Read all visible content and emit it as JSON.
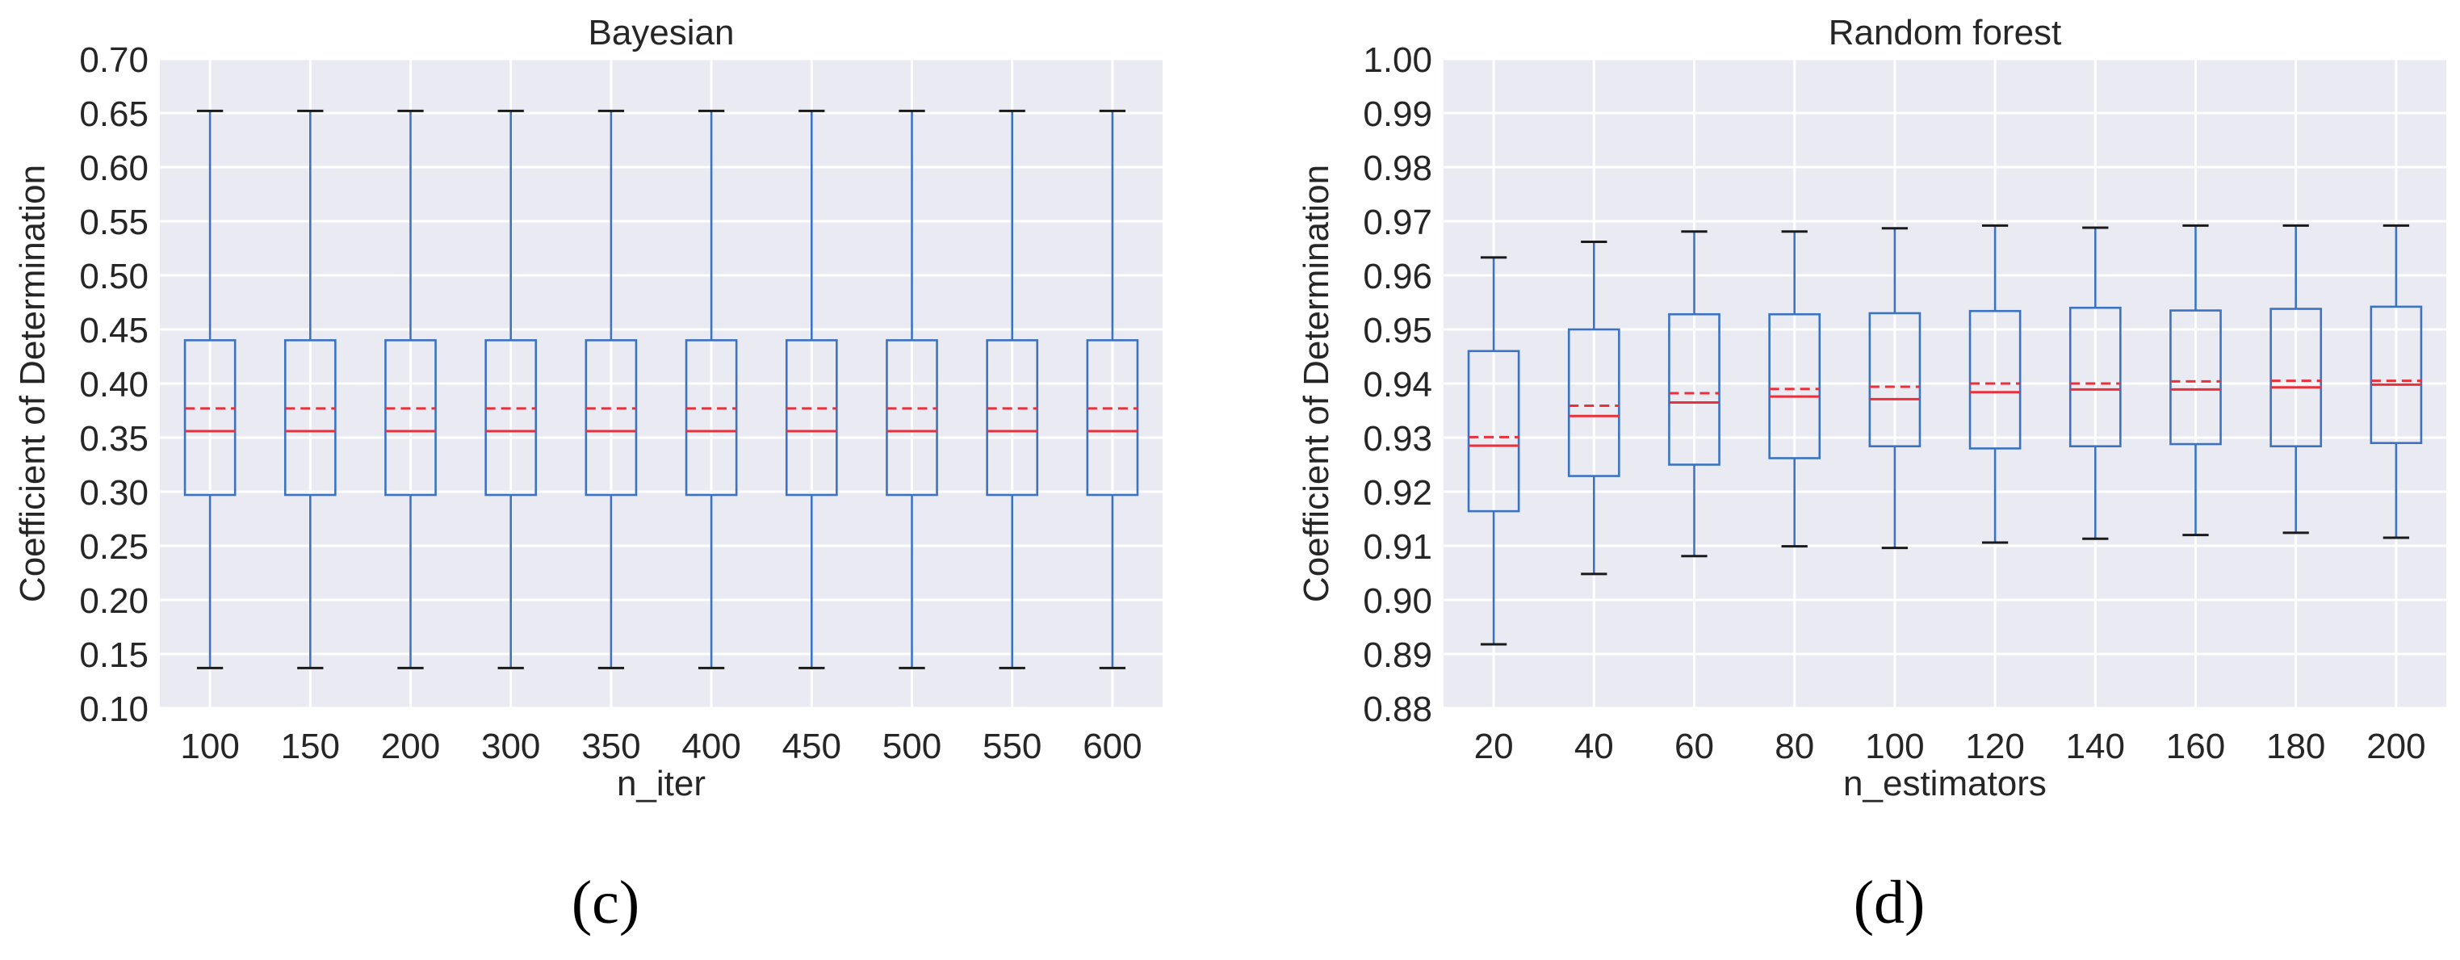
{
  "panel_labels": [
    "(c)",
    "(d)"
  ],
  "chart_data": [
    {
      "type": "boxplot",
      "title": "Bayesian",
      "xlabel": "n_iter",
      "ylabel": "Coefficient of Determination",
      "ylim": [
        0.1,
        0.7
      ],
      "yticks": [
        "0.10",
        "0.15",
        "0.20",
        "0.25",
        "0.30",
        "0.35",
        "0.40",
        "0.45",
        "0.50",
        "0.55",
        "0.60",
        "0.65",
        "0.70"
      ],
      "grid": true,
      "categories": [
        "100",
        "150",
        "200",
        "300",
        "350",
        "400",
        "450",
        "500",
        "550",
        "600"
      ],
      "boxes": [
        {
          "whislo": 0.137,
          "q1": 0.297,
          "med": 0.356,
          "mean": 0.377,
          "q3": 0.44,
          "whishi": 0.652
        },
        {
          "whislo": 0.137,
          "q1": 0.297,
          "med": 0.356,
          "mean": 0.377,
          "q3": 0.44,
          "whishi": 0.652
        },
        {
          "whislo": 0.137,
          "q1": 0.297,
          "med": 0.356,
          "mean": 0.377,
          "q3": 0.44,
          "whishi": 0.652
        },
        {
          "whislo": 0.137,
          "q1": 0.297,
          "med": 0.356,
          "mean": 0.377,
          "q3": 0.44,
          "whishi": 0.652
        },
        {
          "whislo": 0.137,
          "q1": 0.297,
          "med": 0.356,
          "mean": 0.377,
          "q3": 0.44,
          "whishi": 0.652
        },
        {
          "whislo": 0.137,
          "q1": 0.297,
          "med": 0.356,
          "mean": 0.377,
          "q3": 0.44,
          "whishi": 0.652
        },
        {
          "whislo": 0.137,
          "q1": 0.297,
          "med": 0.356,
          "mean": 0.377,
          "q3": 0.44,
          "whishi": 0.652
        },
        {
          "whislo": 0.137,
          "q1": 0.297,
          "med": 0.356,
          "mean": 0.377,
          "q3": 0.44,
          "whishi": 0.652
        },
        {
          "whislo": 0.137,
          "q1": 0.297,
          "med": 0.356,
          "mean": 0.377,
          "q3": 0.44,
          "whishi": 0.652
        },
        {
          "whislo": 0.137,
          "q1": 0.297,
          "med": 0.356,
          "mean": 0.377,
          "q3": 0.44,
          "whishi": 0.652
        }
      ]
    },
    {
      "type": "boxplot",
      "title": "Random forest",
      "xlabel": "n_estimators",
      "ylabel": "Coefficient of Determination",
      "ylim": [
        0.88,
        1.0
      ],
      "yticks": [
        "0.88",
        "0.89",
        "0.90",
        "0.91",
        "0.92",
        "0.93",
        "0.94",
        "0.95",
        "0.96",
        "0.97",
        "0.98",
        "0.99",
        "1.00"
      ],
      "grid": true,
      "categories": [
        "20",
        "40",
        "60",
        "80",
        "100",
        "120",
        "140",
        "160",
        "180",
        "200"
      ],
      "boxes": [
        {
          "whislo": 0.8918,
          "q1": 0.9164,
          "med": 0.9285,
          "mean": 0.9301,
          "q3": 0.946,
          "whishi": 0.9633
        },
        {
          "whislo": 0.9048,
          "q1": 0.9229,
          "med": 0.934,
          "mean": 0.9359,
          "q3": 0.95,
          "whishi": 0.9662
        },
        {
          "whislo": 0.9081,
          "q1": 0.925,
          "med": 0.9365,
          "mean": 0.9382,
          "q3": 0.9528,
          "whishi": 0.9681
        },
        {
          "whislo": 0.9099,
          "q1": 0.9262,
          "med": 0.9376,
          "mean": 0.939,
          "q3": 0.9528,
          "whishi": 0.9681
        },
        {
          "whislo": 0.9096,
          "q1": 0.9284,
          "med": 0.9371,
          "mean": 0.9394,
          "q3": 0.953,
          "whishi": 0.9687
        },
        {
          "whislo": 0.9106,
          "q1": 0.928,
          "med": 0.9384,
          "mean": 0.94,
          "q3": 0.9534,
          "whishi": 0.9692
        },
        {
          "whislo": 0.9113,
          "q1": 0.9284,
          "med": 0.9389,
          "mean": 0.94,
          "q3": 0.954,
          "whishi": 0.9688
        },
        {
          "whislo": 0.912,
          "q1": 0.9288,
          "med": 0.9389,
          "mean": 0.9404,
          "q3": 0.9535,
          "whishi": 0.9692
        },
        {
          "whislo": 0.9124,
          "q1": 0.9284,
          "med": 0.9393,
          "mean": 0.9405,
          "q3": 0.9538,
          "whishi": 0.9692
        },
        {
          "whislo": 0.9115,
          "q1": 0.929,
          "med": 0.9398,
          "mean": 0.9405,
          "q3": 0.9542,
          "whishi": 0.9692
        }
      ]
    }
  ]
}
